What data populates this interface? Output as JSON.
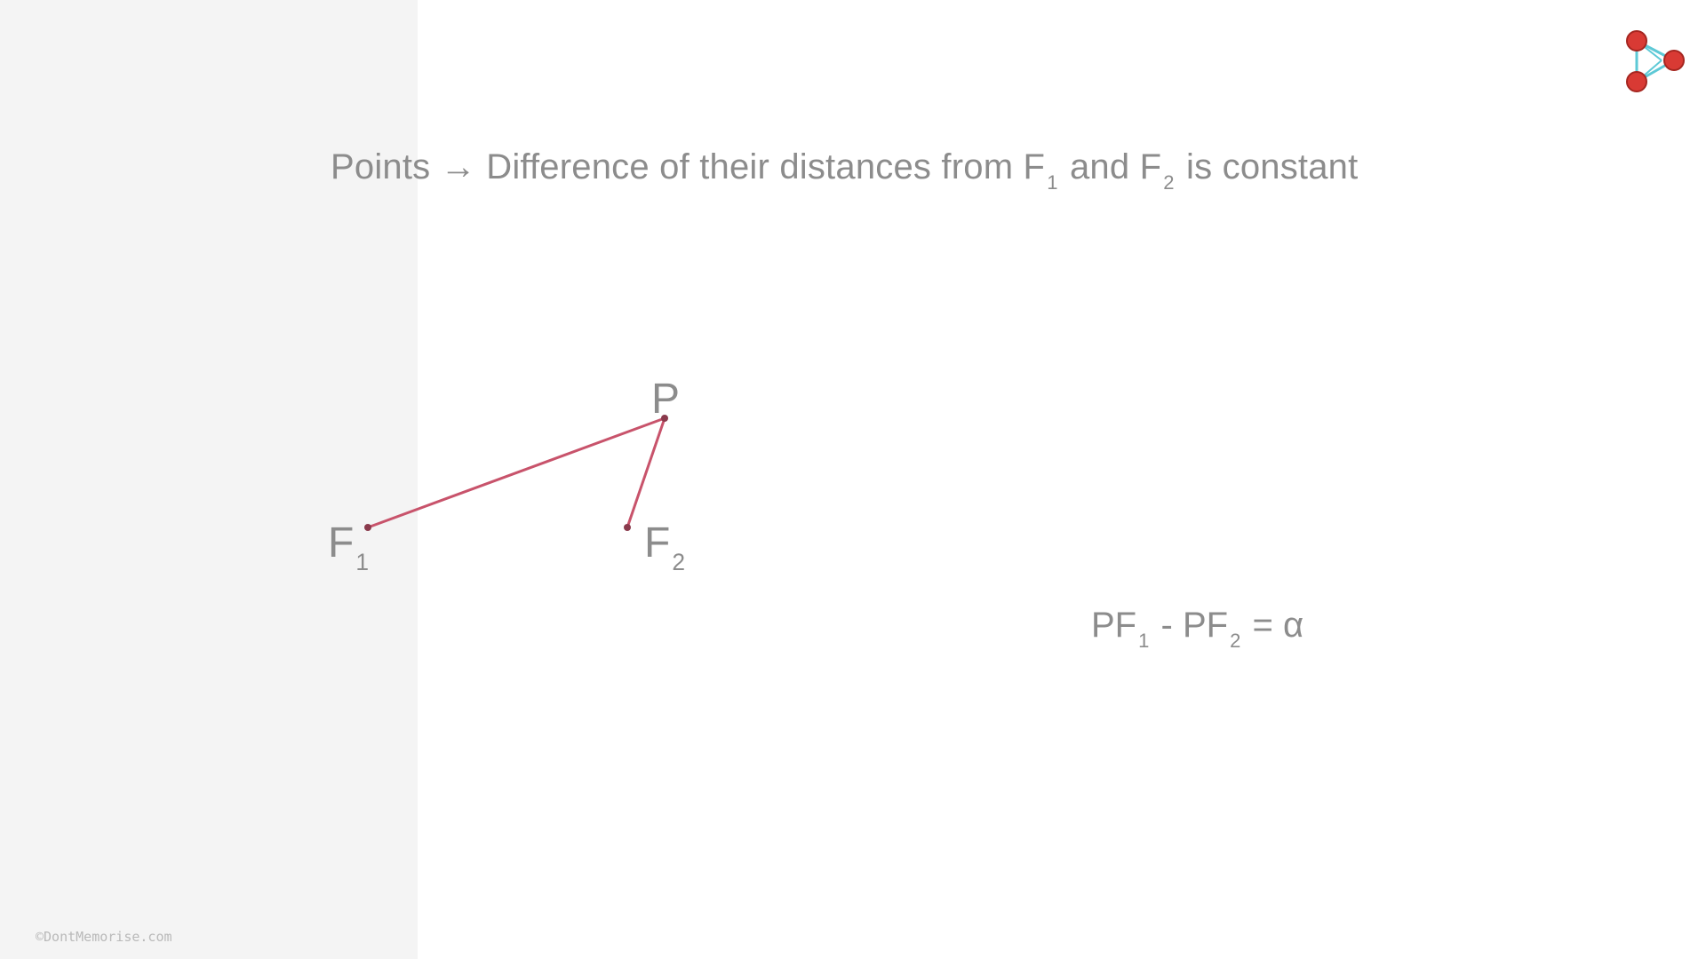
{
  "headline": {
    "lead": "Points",
    "arrow": "→",
    "part1": "Difference of their distances from F",
    "sub1": "1",
    "part2": "and F",
    "sub2": "2",
    "part3": "is constant"
  },
  "labels": {
    "p": "P",
    "f1_main": "F",
    "f1_sub": "1",
    "f2_main": "F",
    "f2_sub": "2"
  },
  "equation": {
    "a": "PF",
    "a_sub": "1",
    "minus": "-",
    "b": "PF",
    "b_sub": "2",
    "equals": "=",
    "rhs": "α"
  },
  "watermark": "©DontMemorise.com",
  "logo": {
    "icon": "play-triangle-molecule-logo",
    "node_color": "#d93a34",
    "edge_color": "#5ec9d6"
  },
  "colors": {
    "segment": "#c8536b",
    "text": "#8c8c8c",
    "left_panel": "#f4f4f4"
  }
}
